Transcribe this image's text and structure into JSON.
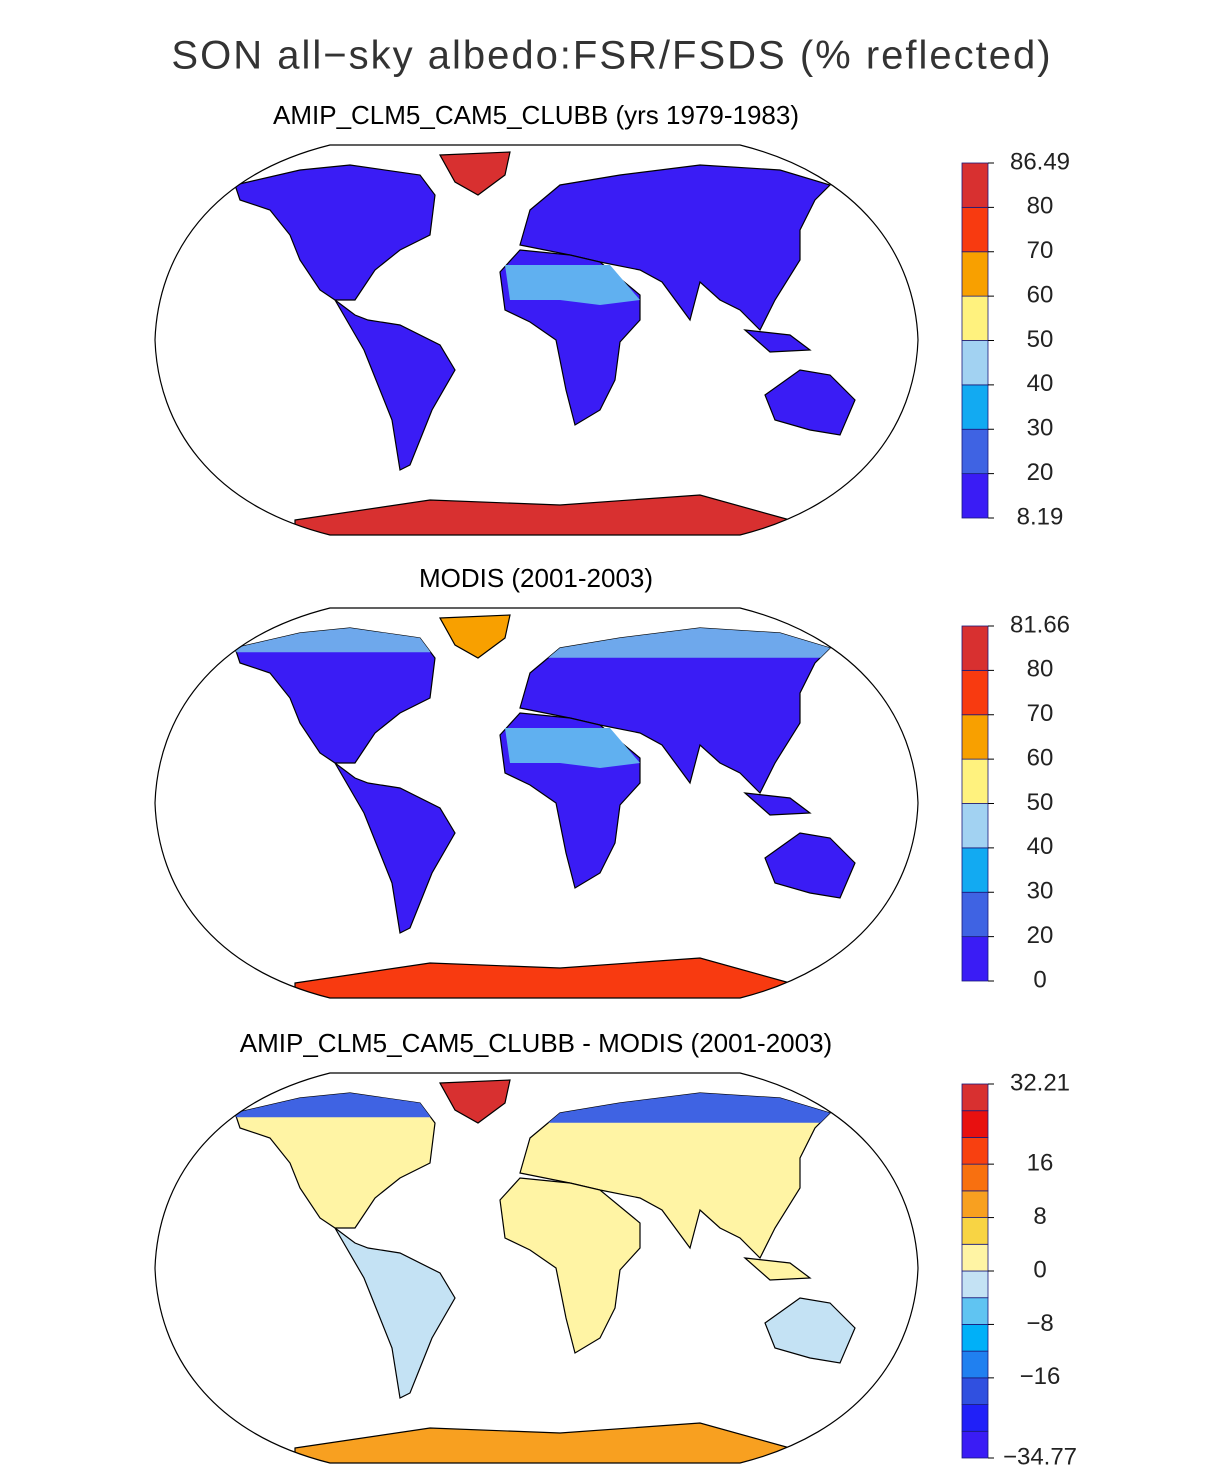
{
  "title": "SON all−sky albedo:FSR/FSDS (% reflected)",
  "chart_data": [
    {
      "type": "map",
      "title": "AMIP_CLM5_CAM5_CLUBB (yrs 1979-1983)",
      "colorbar": {
        "colors": [
          "#3a1cf5",
          "#3f63e3",
          "#12aaf2",
          "#a2d2f2",
          "#fff27e",
          "#f8a000",
          "#f83a10",
          "#d83030"
        ],
        "ticks": [
          8.19,
          20,
          30,
          40,
          50,
          60,
          70,
          80,
          86.49
        ]
      }
    },
    {
      "type": "map",
      "title": "MODIS (2001-2003)",
      "colorbar": {
        "colors": [
          "#3a1cf5",
          "#3f63e3",
          "#12aaf2",
          "#a2d2f2",
          "#fff27e",
          "#f8a000",
          "#f83a10",
          "#d83030"
        ],
        "ticks": [
          0,
          20,
          30,
          40,
          50,
          60,
          70,
          80,
          81.66
        ]
      }
    },
    {
      "type": "map",
      "title": "AMIP_CLM5_CAM5_CLUBB - MODIS (2001-2003)",
      "colorbar": {
        "colors": [
          "#3a1cf5",
          "#2020f8",
          "#3050e0",
          "#2080f0",
          "#00b0f8",
          "#60c4f2",
          "#c4e2f4",
          "#fff4a4",
          "#f8d444",
          "#f8a020",
          "#f87010",
          "#f84010",
          "#e81010",
          "#d83030"
        ],
        "ticks": [
          {
            "value": -34.77,
            "label": "−34.77"
          },
          {
            "value": -16,
            "label": "−16"
          },
          {
            "value": -8,
            "label": "−8"
          },
          0,
          8,
          16,
          32.21
        ]
      }
    }
  ]
}
